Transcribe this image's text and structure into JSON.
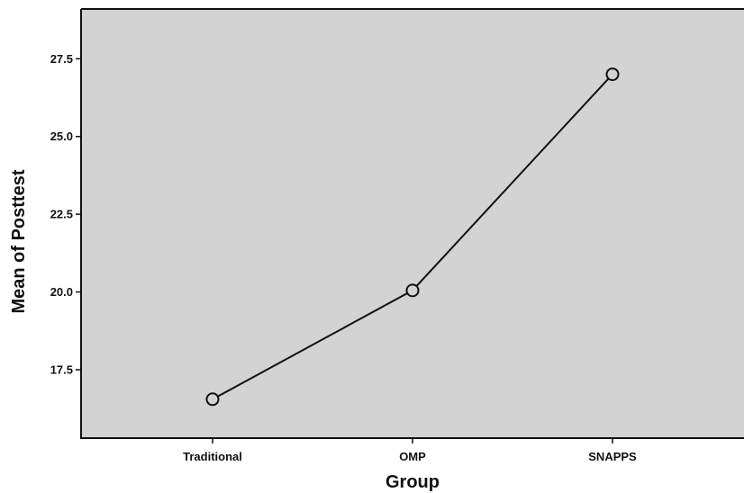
{
  "chart_data": {
    "type": "line",
    "title": "",
    "xlabel": "Group",
    "ylabel": "Mean of Posttest",
    "categories": [
      "Traditional",
      "OMP",
      "SNAPPS"
    ],
    "series": [
      {
        "values": [
          16.55,
          20.05,
          27.0
        ]
      }
    ],
    "ylim": [
      15.3,
      29.1
    ],
    "yticks": [
      17.5,
      20.0,
      22.5,
      25.0,
      27.5
    ],
    "ytick_labels": [
      "17.5",
      "20.0",
      "22.5",
      "25.0",
      "27.5"
    ],
    "grid": false,
    "legend": "none",
    "colors": {
      "plot_background": "#d3d3d3",
      "line": "#111111",
      "marker_fill": "#d3d3d3"
    },
    "marker": "open-circle"
  }
}
